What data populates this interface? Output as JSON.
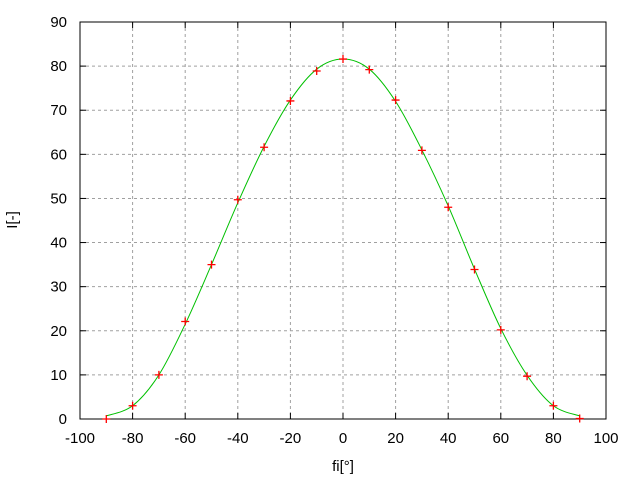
{
  "chart_data": {
    "type": "line",
    "title": "",
    "xlabel": "fi[°]",
    "ylabel": "I[-]",
    "xlim": [
      -100,
      100
    ],
    "ylim": [
      0,
      90
    ],
    "xticks": [
      -100,
      -80,
      -60,
      -40,
      -20,
      0,
      20,
      40,
      60,
      80,
      100
    ],
    "yticks": [
      0,
      10,
      20,
      30,
      40,
      50,
      60,
      70,
      80,
      90
    ],
    "grid": true,
    "legend": "none",
    "series": [
      {
        "style": "points",
        "marker": "plus",
        "color": "#ff0000",
        "x": [
          -90,
          -80,
          -70,
          -60,
          -50,
          -40,
          -30,
          -20,
          -10,
          0,
          10,
          20,
          30,
          40,
          50,
          60,
          70,
          80,
          90
        ],
        "y": [
          0.0,
          3.0,
          10.0,
          22.1,
          35.0,
          49.7,
          61.6,
          72.1,
          78.9,
          81.6,
          79.2,
          72.3,
          60.9,
          48.0,
          33.9,
          20.2,
          9.7,
          3.0,
          0.1
        ]
      },
      {
        "style": "smooth-line",
        "color": "#00c000",
        "x": [
          -90,
          -80,
          -70,
          -60,
          -50,
          -40,
          -30,
          -20,
          -10,
          0,
          10,
          20,
          30,
          40,
          50,
          60,
          70,
          80,
          90
        ],
        "y": [
          0.7,
          3.0,
          10.0,
          21.5,
          35.0,
          49.0,
          61.8,
          72.3,
          79.3,
          81.6,
          79.3,
          72.0,
          61.0,
          48.3,
          34.0,
          20.5,
          9.9,
          3.0,
          0.7
        ]
      }
    ]
  }
}
